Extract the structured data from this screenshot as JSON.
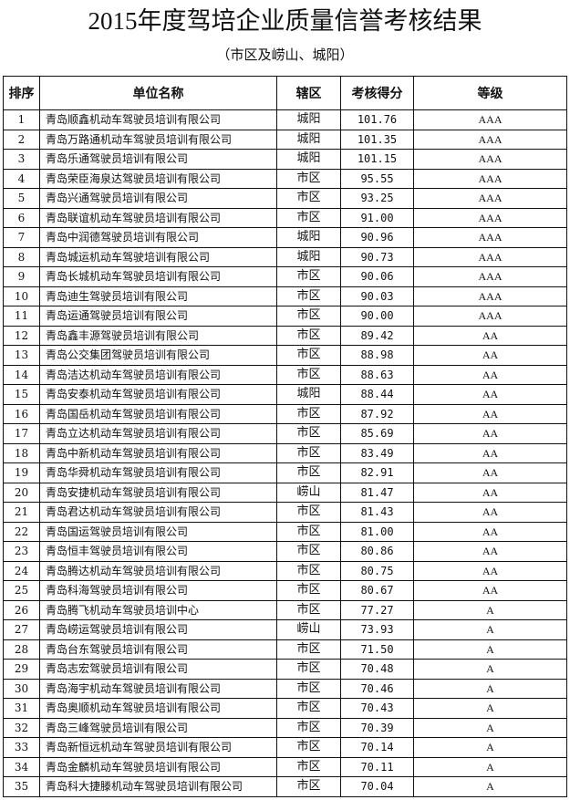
{
  "title": "2015年度驾培企业质量信誉考核结果",
  "subtitle": "（市区及崂山、城阳）",
  "table": {
    "headers": [
      "排序",
      "单位名称",
      "辖区",
      "考核得分",
      "等级"
    ],
    "rows": [
      [
        "1",
        "青岛顺鑫机动车驾驶员培训有限公司",
        "城阳",
        "101.76",
        "AAA"
      ],
      [
        "2",
        "青岛万路通机动车驾驶员培训有限公司",
        "城阳",
        "101.35",
        "AAA"
      ],
      [
        "3",
        "青岛乐通驾驶员培训有限公司",
        "城阳",
        "101.15",
        "AAA"
      ],
      [
        "4",
        "青岛荣臣海泉达驾驶员培训有限公司",
        "市区",
        "95.55",
        "AAA"
      ],
      [
        "5",
        "青岛兴通驾驶员培训有限公司",
        "市区",
        "93.25",
        "AAA"
      ],
      [
        "6",
        "青岛联谊机动车驾驶员培训有限公司",
        "市区",
        "91.00",
        "AAA"
      ],
      [
        "7",
        "青岛中润德驾驶员培训有限公司",
        "城阳",
        "90.96",
        "AAA"
      ],
      [
        "8",
        "青岛城运机动车驾驶培训有限公司",
        "城阳",
        "90.73",
        "AAA"
      ],
      [
        "9",
        "青岛长城机动车驾驶员培训有限公司",
        "市区",
        "90.06",
        "AAA"
      ],
      [
        "10",
        "青岛迪生驾驶员培训有限公司",
        "市区",
        "90.03",
        "AAA"
      ],
      [
        "11",
        "青岛运通驾驶员培训有限公司",
        "市区",
        "90.00",
        "AAA"
      ],
      [
        "12",
        "青岛鑫丰源驾驶员培训有限公司",
        "市区",
        "89.42",
        "AA"
      ],
      [
        "13",
        "青岛公交集团驾驶员培训有限公司",
        "市区",
        "88.98",
        "AA"
      ],
      [
        "14",
        "青岛洁达机动车驾驶员培训有限公司",
        "市区",
        "88.63",
        "AA"
      ],
      [
        "15",
        "青岛安泰机动车驾驶员培训有限公司",
        "城阳",
        "88.44",
        "AA"
      ],
      [
        "16",
        "青岛国岳机动车驾驶员培训有限公司",
        "市区",
        "87.92",
        "AA"
      ],
      [
        "17",
        "青岛立达机动车驾驶员培训有限公司",
        "市区",
        "85.69",
        "AA"
      ],
      [
        "18",
        "青岛中新机动车驾驶员培训有限公司",
        "市区",
        "83.49",
        "AA"
      ],
      [
        "19",
        "青岛华舜机动车驾驶员培训有限公司",
        "市区",
        "82.91",
        "AA"
      ],
      [
        "20",
        "青岛安捷机动车驾驶员培训有限公司",
        "崂山",
        "81.47",
        "AA"
      ],
      [
        "21",
        "青岛君达机动车驾驶员培训有限公司",
        "市区",
        "81.43",
        "AA"
      ],
      [
        "22",
        "青岛国运驾驶员培训有限公司",
        "市区",
        "81.00",
        "AA"
      ],
      [
        "23",
        "青岛恒丰驾驶员培训有限公司",
        "市区",
        "80.86",
        "AA"
      ],
      [
        "24",
        "青岛腾达机动车驾驶员培训有限公司",
        "市区",
        "80.75",
        "AA"
      ],
      [
        "25",
        "青岛科海驾驶员培训有限公司",
        "市区",
        "80.67",
        "AA"
      ],
      [
        "26",
        "青岛腾飞机动车驾驶员培训中心",
        "市区",
        "77.27",
        "A"
      ],
      [
        "27",
        "青岛崂运驾驶员培训有限公司",
        "崂山",
        "73.93",
        "A"
      ],
      [
        "28",
        "青岛台东驾驶员培训有限公司",
        "市区",
        "71.50",
        "A"
      ],
      [
        "29",
        "青岛志宏驾驶员培训有限公司",
        "市区",
        "70.48",
        "A"
      ],
      [
        "30",
        "青岛海宇机动车驾驶员培训有限公司",
        "市区",
        "70.46",
        "A"
      ],
      [
        "31",
        "青岛奥顺机动车驾驶员培训有限公司",
        "市区",
        "70.43",
        "A"
      ],
      [
        "32",
        "青岛三峰驾驶员培训有限公司",
        "市区",
        "70.39",
        "A"
      ],
      [
        "33",
        "青岛新恒远机动车驾驶员培训有限公司",
        "市区",
        "70.14",
        "A"
      ],
      [
        "34",
        "青岛金麟机动车驾驶员培训有限公司",
        "市区",
        "70.11",
        "A"
      ],
      [
        "35",
        "青岛科大捷滕机动车驾驶员培训有限公司",
        "市区",
        "70.04",
        "A"
      ]
    ]
  }
}
